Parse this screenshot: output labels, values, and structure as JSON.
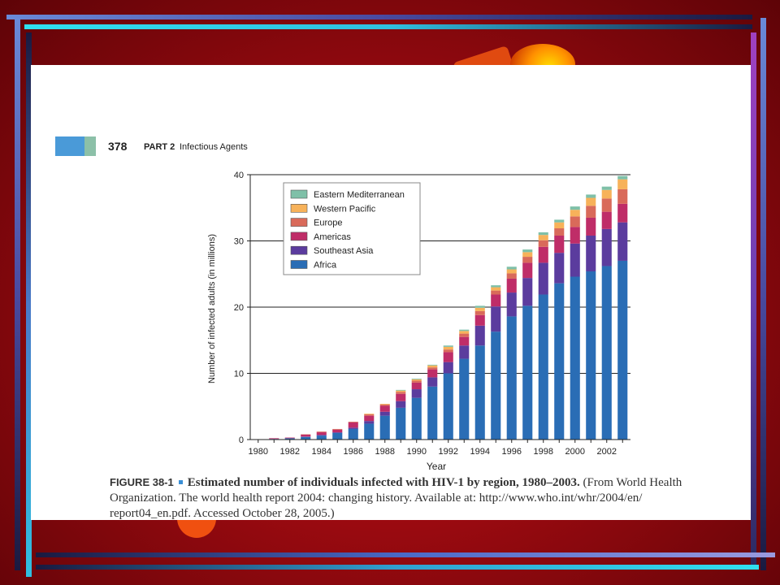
{
  "header": {
    "page_number": "378",
    "part_label": "PART 2",
    "part_title": "Infectious Agents"
  },
  "caption": {
    "label": "FIGURE 38-1",
    "title": "Estimated number of individuals infected with HIV-1 by region, 1980–2003.",
    "source": "(From World Health Organization. The world health report 2004: changing history. Available at: http://www.who.int/whr/2004/en/ report04_en.pdf. Accessed October 28, 2005.)"
  },
  "chart_data": {
    "type": "bar",
    "stacked": true,
    "title": "",
    "xlabel": "Year",
    "ylabel": "Number of infected adults (in millions)",
    "ylim": [
      0,
      40
    ],
    "yticks": [
      0,
      10,
      20,
      30,
      40
    ],
    "xtick_labels": [
      "1980",
      "1982",
      "1984",
      "1986",
      "1988",
      "1990",
      "1992",
      "1994",
      "1996",
      "1998",
      "2000",
      "2002"
    ],
    "grid": "horizontal",
    "legend_position": "top-left",
    "categories": [
      "1980",
      "1981",
      "1982",
      "1983",
      "1984",
      "1985",
      "1986",
      "1987",
      "1988",
      "1989",
      "1990",
      "1991",
      "1992",
      "1993",
      "1994",
      "1995",
      "1996",
      "1997",
      "1998",
      "1999",
      "2000",
      "2001",
      "2002",
      "2003"
    ],
    "series": [
      {
        "name": "Africa",
        "color": "#2a6db5",
        "values": [
          0,
          0.1,
          0.2,
          0.4,
          0.6,
          1.0,
          1.6,
          2.4,
          3.6,
          4.8,
          6.3,
          8.0,
          10.0,
          12.2,
          14.2,
          16.3,
          18.6,
          20.2,
          21.9,
          23.6,
          24.6,
          25.4,
          26.2,
          27.0
        ]
      },
      {
        "name": "Southeast Asia",
        "color": "#5b3c9e",
        "values": [
          0,
          0,
          0,
          0.05,
          0.1,
          0.1,
          0.2,
          0.4,
          0.6,
          1.0,
          1.3,
          1.4,
          1.7,
          2.0,
          3.0,
          3.8,
          3.6,
          4.2,
          4.8,
          4.6,
          5.0,
          5.4,
          5.6,
          5.8
        ]
      },
      {
        "name": "Americas",
        "color": "#bf2d68",
        "values": [
          0,
          0.1,
          0.1,
          0.3,
          0.4,
          0.4,
          0.8,
          0.8,
          0.9,
          1.1,
          1.0,
          1.2,
          1.5,
          1.3,
          1.6,
          1.8,
          2.1,
          2.3,
          2.4,
          2.6,
          2.5,
          2.7,
          2.6,
          2.8
        ]
      },
      {
        "name": "Europe",
        "color": "#d96a5a",
        "values": [
          0,
          0,
          0,
          0.05,
          0.1,
          0.1,
          0.1,
          0.2,
          0.2,
          0.3,
          0.3,
          0.3,
          0.4,
          0.5,
          0.6,
          0.6,
          0.8,
          0.9,
          1.0,
          1.1,
          1.6,
          1.8,
          2.0,
          2.2
        ]
      },
      {
        "name": "Western Pacific",
        "color": "#f7b25a",
        "values": [
          0,
          0,
          0,
          0,
          0,
          0,
          0,
          0.1,
          0.1,
          0.2,
          0.2,
          0.3,
          0.4,
          0.4,
          0.5,
          0.5,
          0.6,
          0.7,
          0.8,
          0.9,
          1.0,
          1.2,
          1.3,
          1.5
        ]
      },
      {
        "name": "Eastern Mediterranean",
        "color": "#7fc0a8",
        "values": [
          0,
          0,
          0,
          0,
          0,
          0,
          0,
          0,
          0,
          0.1,
          0.1,
          0.1,
          0.2,
          0.2,
          0.3,
          0.3,
          0.4,
          0.4,
          0.4,
          0.4,
          0.5,
          0.5,
          0.5,
          0.5
        ]
      }
    ]
  },
  "legend_order": [
    "Eastern Mediterranean",
    "Western Pacific",
    "Europe",
    "Americas",
    "Southeast Asia",
    "Africa"
  ]
}
